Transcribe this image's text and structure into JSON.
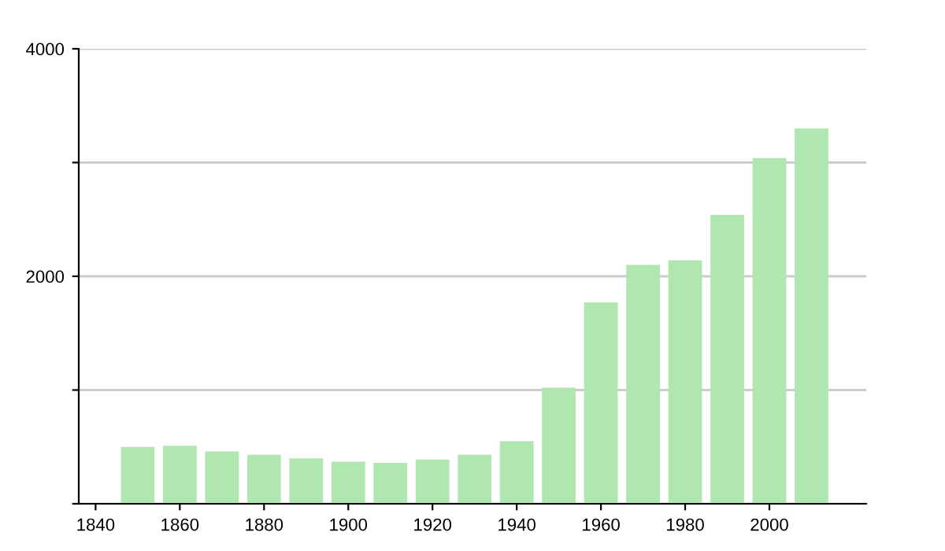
{
  "chart_data": {
    "type": "bar",
    "x": [
      1850,
      1860,
      1870,
      1880,
      1890,
      1900,
      1910,
      1920,
      1930,
      1940,
      1950,
      1960,
      1970,
      1980,
      1990,
      2000,
      2010
    ],
    "values": [
      500,
      510,
      460,
      430,
      400,
      370,
      360,
      390,
      430,
      550,
      1020,
      1770,
      2100,
      2140,
      2540,
      3040,
      3300
    ],
    "color": "#b0e6b0",
    "xlim": [
      1836,
      2023
    ],
    "xticks": [
      1840,
      1860,
      1880,
      1900,
      1920,
      1940,
      1960,
      1980,
      2000
    ],
    "ylim": [
      0,
      4000
    ],
    "yticks": [
      {
        "value": 0,
        "label": null
      },
      {
        "value": 1000,
        "label": null
      },
      2000,
      {
        "value": 3000,
        "label": null
      },
      4000
    ],
    "grid": "y"
  }
}
